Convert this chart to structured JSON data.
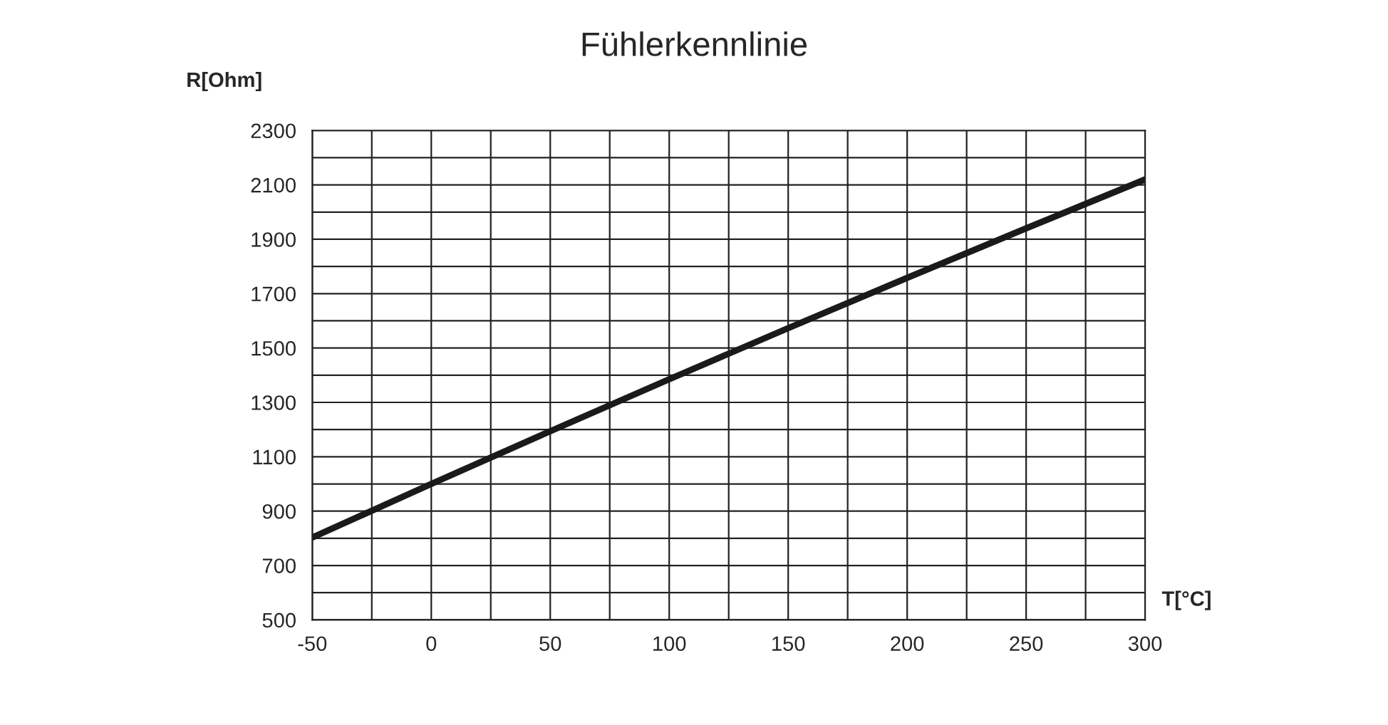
{
  "chart_data": {
    "type": "line",
    "title": "Fühlerkennlinie",
    "xlabel": "T[°C]",
    "ylabel": "R[Ohm]",
    "x": [
      -50,
      0,
      50,
      100,
      150,
      200,
      250,
      300
    ],
    "series": [
      {
        "color": "#1a1a1a",
        "values": [
          803,
          1000,
          1194,
          1385,
          1573,
          1758,
          1940,
          2120
        ]
      }
    ],
    "xlim": [
      -50,
      300
    ],
    "xticks": [
      -50,
      {
        "value": -25,
        "label": null
      },
      0,
      {
        "value": 25,
        "label": null
      },
      50,
      {
        "value": 75,
        "label": null
      },
      100,
      {
        "value": 125,
        "label": null
      },
      150,
      {
        "value": 175,
        "label": null
      },
      200,
      {
        "value": 225,
        "label": null
      },
      250,
      {
        "value": 275,
        "label": null
      },
      300
    ],
    "ylim": [
      500,
      2300
    ],
    "yticks": [
      500,
      {
        "value": 600,
        "label": null
      },
      700,
      {
        "value": 800,
        "label": null
      },
      900,
      {
        "value": 1000,
        "label": null
      },
      1100,
      {
        "value": 1200,
        "label": null
      },
      1300,
      {
        "value": 1400,
        "label": null
      },
      1500,
      {
        "value": 1600,
        "label": null
      },
      1700,
      {
        "value": 1800,
        "label": null
      },
      1900,
      {
        "value": 2000,
        "label": null
      },
      2100,
      {
        "value": 2200,
        "label": null
      },
      2300
    ],
    "grid": true,
    "legend": false,
    "marker": "none",
    "line_style": "solid"
  }
}
